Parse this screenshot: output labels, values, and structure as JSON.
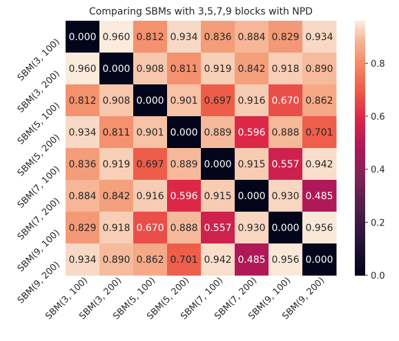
{
  "chart_data": {
    "type": "heatmap",
    "title": "Comparing SBMs with 3,5,7,9 blocks with NPD",
    "x_labels": [
      "SBM(3, 100)",
      "SBM(3, 200)",
      "SBM(5, 100)",
      "SBM(5, 200)",
      "SBM(7, 100)",
      "SBM(7, 200)",
      "SBM(9, 100)",
      "SBM(9, 200)"
    ],
    "y_labels": [
      "SBM(3, 100)",
      "SBM(3, 200)",
      "SBM(5, 100)",
      "SBM(5, 200)",
      "SBM(7, 100)",
      "SBM(7, 200)",
      "SBM(9, 100)",
      "SBM(9, 200)"
    ],
    "values": [
      [
        0.0,
        0.96,
        0.812,
        0.934,
        0.836,
        0.884,
        0.829,
        0.934
      ],
      [
        0.96,
        0.0,
        0.908,
        0.811,
        0.919,
        0.842,
        0.918,
        0.89
      ],
      [
        0.812,
        0.908,
        0.0,
        0.901,
        0.697,
        0.916,
        0.67,
        0.862
      ],
      [
        0.934,
        0.811,
        0.901,
        0.0,
        0.889,
        0.596,
        0.888,
        0.701
      ],
      [
        0.836,
        0.919,
        0.697,
        0.889,
        0.0,
        0.915,
        0.557,
        0.942
      ],
      [
        0.884,
        0.842,
        0.916,
        0.596,
        0.915,
        0.0,
        0.93,
        0.485
      ],
      [
        0.829,
        0.918,
        0.67,
        0.888,
        0.557,
        0.93,
        0.0,
        0.956
      ],
      [
        0.934,
        0.89,
        0.862,
        0.701,
        0.942,
        0.485,
        0.956,
        0.0
      ]
    ],
    "value_format": "3 decimals",
    "colorbar": {
      "range": [
        0.0,
        0.96
      ],
      "ticks": [
        0.0,
        0.2,
        0.4,
        0.6,
        0.8
      ],
      "tick_labels": [
        "0.0",
        "0.2",
        "0.4",
        "0.6",
        "0.8"
      ]
    },
    "colormap": "rocket",
    "xlabel": "",
    "ylabel": ""
  }
}
